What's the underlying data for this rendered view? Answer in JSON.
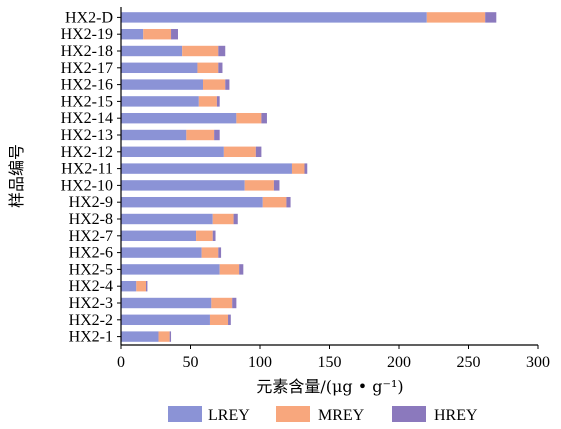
{
  "chart_data": {
    "type": "bar",
    "orientation": "horizontal",
    "stacked": true,
    "title": "",
    "xlabel": "元素含量/(μg • g⁻¹)",
    "ylabel": "样品编号",
    "xlim": [
      0,
      300
    ],
    "xticks": [
      0,
      50,
      100,
      150,
      200,
      250,
      300
    ],
    "grid": false,
    "legend_position": "bottom",
    "categories": [
      "HX2-D",
      "HX2-19",
      "HX2-18",
      "HX2-17",
      "HX2-16",
      "HX2-15",
      "HX2-14",
      "HX2-13",
      "HX2-12",
      "HX2-11",
      "HX2-10",
      "HX2-9",
      "HX2-8",
      "HX2-7",
      "HX2-6",
      "HX2-5",
      "HX2-4",
      "HX2-3",
      "HX2-2",
      "HX2-1"
    ],
    "series": [
      {
        "name": "LREY",
        "color": "#8b93d6",
        "values": [
          220,
          16,
          44,
          55,
          59,
          56,
          83,
          47,
          74,
          123,
          89,
          102,
          66,
          54,
          58,
          71,
          11,
          65,
          64,
          27
        ]
      },
      {
        "name": "MREY",
        "color": "#f8a77d",
        "values": [
          42,
          20,
          26,
          15,
          16,
          13,
          18,
          20,
          23,
          9,
          21,
          17,
          15,
          12,
          12,
          14,
          7,
          15,
          13,
          8
        ]
      },
      {
        "name": "HREY",
        "color": "#8b79bd",
        "values": [
          8,
          5,
          5,
          3,
          3,
          2,
          4,
          4,
          4,
          2,
          4,
          3,
          3,
          2,
          2,
          3,
          1,
          3,
          2,
          1
        ]
      }
    ]
  }
}
